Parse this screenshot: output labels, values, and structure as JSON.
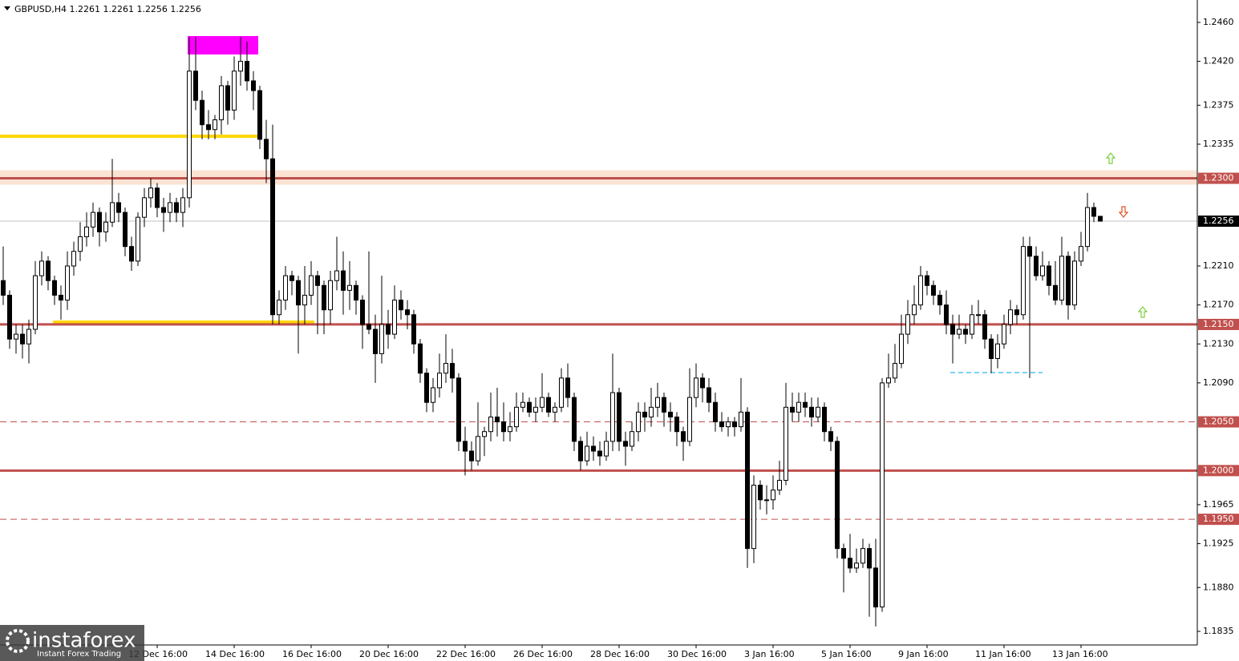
{
  "chart_data": {
    "type": "candlestick",
    "title": "GBPUSD,H4  1.2261 1.2261 1.2256 1.2256",
    "up_color": "#ffffff",
    "down_color": "#000000",
    "outline": "#000000",
    "ylim": [
      1.1821,
      1.2483
    ],
    "yticks": [
      {
        "value": 1.246,
        "label": "1.2460"
      },
      {
        "value": 1.242,
        "label": "1.2420"
      },
      {
        "value": 1.2375,
        "label": "1.2375"
      },
      {
        "value": 1.2335,
        "label": "1.2335"
      },
      {
        "value": 1.221,
        "label": "1.2210"
      },
      {
        "value": 1.217,
        "label": "1.2170"
      },
      {
        "value": 1.213,
        "label": "1.2130"
      },
      {
        "value": 1.209,
        "label": "1.2090"
      },
      {
        "value": 1.1965,
        "label": "1.1965"
      },
      {
        "value": 1.1925,
        "label": "1.1925"
      },
      {
        "value": 1.188,
        "label": "1.1880"
      },
      {
        "value": 1.1835,
        "label": "1.1835"
      }
    ],
    "levels": [
      {
        "value": 1.23,
        "label": "1.2300",
        "color": "#c0504d",
        "style": "solid"
      },
      {
        "value": 1.215,
        "label": "1.2150",
        "color": "#c0504d",
        "style": "solid"
      },
      {
        "value": 1.205,
        "label": "1.2050",
        "color": "#c0504d",
        "style": "dashed"
      },
      {
        "value": 1.2,
        "label": "1.2000",
        "color": "#c0504d",
        "style": "solid"
      },
      {
        "value": 1.195,
        "label": "1.1950",
        "color": "#c0504d",
        "style": "dashed"
      }
    ],
    "current": {
      "value": 1.2256,
      "label": "1.2256"
    },
    "categories": [
      null,
      null,
      null,
      null,
      null,
      null,
      null,
      null,
      null,
      null,
      null,
      null,
      null,
      null,
      null,
      null,
      null,
      null,
      null,
      null,
      null,
      null,
      null,
      null,
      "12 Dec 16:00",
      null,
      null,
      null,
      null,
      null,
      null,
      null,
      null,
      null,
      null,
      null,
      "14 Dec 16:00",
      null,
      null,
      null,
      null,
      null,
      null,
      null,
      null,
      null,
      null,
      null,
      "16 Dec 16:00",
      null,
      null,
      null,
      null,
      null,
      null,
      null,
      null,
      null,
      null,
      null,
      "20 Dec 16:00",
      null,
      null,
      null,
      null,
      null,
      null,
      null,
      null,
      null,
      null,
      null,
      "22 Dec 16:00",
      null,
      null,
      null,
      null,
      null,
      null,
      null,
      null,
      null,
      null,
      null,
      "26 Dec 16:00",
      null,
      null,
      null,
      null,
      null,
      null,
      null,
      null,
      null,
      null,
      null,
      "28 Dec 16:00",
      null,
      null,
      null,
      null,
      null,
      null,
      null,
      null,
      null,
      null,
      null,
      "30 Dec 16:00",
      null,
      null,
      null,
      null,
      null,
      null,
      null,
      null,
      null,
      null,
      null,
      "3 Jan 16:00",
      null,
      null,
      null,
      null,
      null,
      null,
      null,
      null,
      null,
      null,
      null,
      "5 Jan 16:00",
      null,
      null,
      null,
      null,
      null,
      null,
      null,
      null,
      null,
      null,
      null,
      "9 Jan 16:00",
      null,
      null,
      null,
      null,
      null,
      null,
      null,
      null,
      null,
      null,
      null,
      "11 Jan 16:00",
      null,
      null,
      null,
      null,
      null,
      null,
      null,
      null,
      null,
      null,
      null,
      "13 Jan 16:00",
      null,
      null,
      null
    ],
    "ohlc": [
      [
        1.2195,
        1.223,
        1.217,
        1.218
      ],
      [
        1.218,
        1.2185,
        1.2125,
        1.2135
      ],
      [
        1.2135,
        1.215,
        1.212,
        1.214
      ],
      [
        1.214,
        1.215,
        1.2115,
        1.213
      ],
      [
        1.213,
        1.2155,
        1.211,
        1.2145
      ],
      [
        1.2145,
        1.2215,
        1.214,
        1.22
      ],
      [
        1.22,
        1.2225,
        1.219,
        1.2215
      ],
      [
        1.2215,
        1.222,
        1.2185,
        1.2195
      ],
      [
        1.2195,
        1.22,
        1.217,
        1.218
      ],
      [
        1.218,
        1.219,
        1.2155,
        1.2175
      ],
      [
        1.2175,
        1.2225,
        1.2165,
        1.221
      ],
      [
        1.221,
        1.2235,
        1.22,
        1.2225
      ],
      [
        1.2225,
        1.2255,
        1.2215,
        1.224
      ],
      [
        1.224,
        1.2265,
        1.223,
        1.225
      ],
      [
        1.225,
        1.2275,
        1.224,
        1.2265
      ],
      [
        1.2265,
        1.227,
        1.223,
        1.2245
      ],
      [
        1.2245,
        1.2265,
        1.2235,
        1.2255
      ],
      [
        1.2255,
        1.232,
        1.225,
        1.2275
      ],
      [
        1.2275,
        1.2285,
        1.2255,
        1.2265
      ],
      [
        1.2265,
        1.227,
        1.222,
        1.223
      ],
      [
        1.223,
        1.224,
        1.2205,
        1.2215
      ],
      [
        1.2215,
        1.2265,
        1.221,
        1.226
      ],
      [
        1.226,
        1.229,
        1.225,
        1.228
      ],
      [
        1.228,
        1.23,
        1.227,
        1.229
      ],
      [
        1.229,
        1.2295,
        1.226,
        1.227
      ],
      [
        1.227,
        1.228,
        1.2245,
        1.2265
      ],
      [
        1.2265,
        1.2285,
        1.2255,
        1.2275
      ],
      [
        1.2275,
        1.228,
        1.2255,
        1.2265
      ],
      [
        1.2265,
        1.229,
        1.225,
        1.228
      ],
      [
        1.228,
        1.2445,
        1.227,
        1.241
      ],
      [
        1.241,
        1.2445,
        1.237,
        1.238
      ],
      [
        1.238,
        1.239,
        1.234,
        1.2355
      ],
      [
        1.2355,
        1.237,
        1.234,
        1.235
      ],
      [
        1.235,
        1.2365,
        1.234,
        1.236
      ],
      [
        1.236,
        1.2405,
        1.2345,
        1.2395
      ],
      [
        1.2395,
        1.24,
        1.2355,
        1.237
      ],
      [
        1.237,
        1.2425,
        1.236,
        1.241
      ],
      [
        1.241,
        1.2445,
        1.2395,
        1.242
      ],
      [
        1.242,
        1.244,
        1.239,
        1.24
      ],
      [
        1.24,
        1.241,
        1.237,
        1.239
      ],
      [
        1.239,
        1.2395,
        1.233,
        1.234
      ],
      [
        1.234,
        1.236,
        1.2295,
        1.232
      ],
      [
        1.232,
        1.2355,
        1.215,
        1.216
      ],
      [
        1.216,
        1.2185,
        1.215,
        1.2175
      ],
      [
        1.2175,
        1.221,
        1.2165,
        1.22
      ],
      [
        1.22,
        1.2205,
        1.218,
        1.2195
      ],
      [
        1.2195,
        1.22,
        1.212,
        1.217
      ],
      [
        1.217,
        1.221,
        1.215,
        1.218
      ],
      [
        1.218,
        1.2215,
        1.217,
        1.22
      ],
      [
        1.22,
        1.2205,
        1.214,
        1.219
      ],
      [
        1.219,
        1.2195,
        1.214,
        1.2165
      ],
      [
        1.2165,
        1.2205,
        1.215,
        1.2195
      ],
      [
        1.2195,
        1.224,
        1.2185,
        1.2205
      ],
      [
        1.2205,
        1.2225,
        1.216,
        1.2185
      ],
      [
        1.2185,
        1.2215,
        1.2165,
        1.219
      ],
      [
        1.219,
        1.2195,
        1.216,
        1.2175
      ],
      [
        1.2175,
        1.218,
        1.2125,
        1.215
      ],
      [
        1.215,
        1.2225,
        1.214,
        1.2145
      ],
      [
        1.2145,
        1.216,
        1.209,
        1.212
      ],
      [
        1.212,
        1.22,
        1.211,
        1.215
      ],
      [
        1.215,
        1.2165,
        1.2125,
        1.214
      ],
      [
        1.214,
        1.219,
        1.2135,
        1.2175
      ],
      [
        1.2175,
        1.2185,
        1.2155,
        1.2165
      ],
      [
        1.2165,
        1.2175,
        1.2145,
        1.216
      ],
      [
        1.216,
        1.2165,
        1.212,
        1.213
      ],
      [
        1.213,
        1.2135,
        1.209,
        1.21
      ],
      [
        1.21,
        1.2105,
        1.206,
        1.207
      ],
      [
        1.207,
        1.2095,
        1.206,
        1.2085
      ],
      [
        1.2085,
        1.212,
        1.2075,
        1.21
      ],
      [
        1.21,
        1.214,
        1.209,
        1.211
      ],
      [
        1.211,
        1.2125,
        1.208,
        1.2095
      ],
      [
        1.2095,
        1.21,
        1.202,
        1.203
      ],
      [
        1.203,
        1.2045,
        1.1995,
        1.202
      ],
      [
        1.202,
        1.203,
        1.2,
        1.201
      ],
      [
        1.201,
        1.207,
        1.2005,
        1.2035
      ],
      [
        1.2035,
        1.2045,
        1.2015,
        1.204
      ],
      [
        1.204,
        1.208,
        1.203,
        1.2055
      ],
      [
        1.2055,
        1.2085,
        1.2035,
        1.205
      ],
      [
        1.205,
        1.207,
        1.203,
        1.204
      ],
      [
        1.204,
        1.206,
        1.203,
        1.2045
      ],
      [
        1.2045,
        1.208,
        1.204,
        1.2065
      ],
      [
        1.2065,
        1.208,
        1.206,
        1.207
      ],
      [
        1.207,
        1.2075,
        1.2055,
        1.206
      ],
      [
        1.206,
        1.2075,
        1.205,
        1.2065
      ],
      [
        1.2065,
        1.21,
        1.206,
        1.2075
      ],
      [
        1.2075,
        1.208,
        1.2055,
        1.206
      ],
      [
        1.206,
        1.207,
        1.205,
        1.2065
      ],
      [
        1.2065,
        1.2105,
        1.206,
        1.2095
      ],
      [
        1.2095,
        1.211,
        1.2065,
        1.2075
      ],
      [
        1.2075,
        1.208,
        1.202,
        1.203
      ],
      [
        1.203,
        1.2035,
        1.2,
        1.201
      ],
      [
        1.201,
        1.204,
        1.2005,
        1.2025
      ],
      [
        1.2025,
        1.2035,
        1.201,
        1.202
      ],
      [
        1.202,
        1.203,
        1.2005,
        1.2015
      ],
      [
        1.2015,
        1.204,
        1.201,
        1.203
      ],
      [
        1.203,
        1.212,
        1.202,
        1.208
      ],
      [
        1.208,
        1.2085,
        1.202,
        1.203
      ],
      [
        1.203,
        1.204,
        1.2005,
        1.2025
      ],
      [
        1.2025,
        1.205,
        1.202,
        1.204
      ],
      [
        1.204,
        1.207,
        1.203,
        1.206
      ],
      [
        1.206,
        1.207,
        1.204,
        1.2055
      ],
      [
        1.2055,
        1.2085,
        1.2045,
        1.2065
      ],
      [
        1.2065,
        1.209,
        1.2055,
        1.2075
      ],
      [
        1.2075,
        1.208,
        1.2045,
        1.206
      ],
      [
        1.206,
        1.207,
        1.204,
        1.2055
      ],
      [
        1.2055,
        1.206,
        1.2025,
        1.204
      ],
      [
        1.204,
        1.2045,
        1.201,
        1.203
      ],
      [
        1.203,
        1.2105,
        1.2025,
        1.2075
      ],
      [
        1.2075,
        1.211,
        1.2065,
        1.2095
      ],
      [
        1.2095,
        1.21,
        1.207,
        1.2085
      ],
      [
        1.2085,
        1.2095,
        1.206,
        1.207
      ],
      [
        1.207,
        1.208,
        1.204,
        1.205
      ],
      [
        1.205,
        1.206,
        1.204,
        1.2045
      ],
      [
        1.2045,
        1.2055,
        1.2035,
        1.205
      ],
      [
        1.205,
        1.2055,
        1.2035,
        1.2045
      ],
      [
        1.2045,
        1.2095,
        1.204,
        1.206
      ],
      [
        1.206,
        1.2065,
        1.19,
        1.192
      ],
      [
        1.192,
        1.1995,
        1.1905,
        1.1985
      ],
      [
        1.1985,
        1.199,
        1.196,
        1.197
      ],
      [
        1.197,
        1.1985,
        1.1955,
        1.197
      ],
      [
        1.197,
        1.1995,
        1.196,
        1.198
      ],
      [
        1.198,
        1.201,
        1.1975,
        1.199
      ],
      [
        1.199,
        1.209,
        1.1985,
        1.2065
      ],
      [
        1.2065,
        1.208,
        1.205,
        1.206
      ],
      [
        1.206,
        1.208,
        1.205,
        1.207
      ],
      [
        1.207,
        1.208,
        1.2055,
        1.2065
      ],
      [
        1.2065,
        1.2075,
        1.2045,
        1.2055
      ],
      [
        1.2055,
        1.2075,
        1.205,
        1.2065
      ],
      [
        1.2065,
        1.207,
        1.203,
        1.204
      ],
      [
        1.204,
        1.2045,
        1.202,
        1.203
      ],
      [
        1.203,
        1.2035,
        1.191,
        1.192
      ],
      [
        1.192,
        1.1925,
        1.1875,
        1.191
      ],
      [
        1.191,
        1.1935,
        1.1895,
        1.19
      ],
      [
        1.19,
        1.192,
        1.1895,
        1.1905
      ],
      [
        1.1905,
        1.193,
        1.19,
        1.192
      ],
      [
        1.192,
        1.1925,
        1.185,
        1.19
      ],
      [
        1.19,
        1.193,
        1.184,
        1.186
      ],
      [
        1.186,
        1.2095,
        1.1855,
        1.209
      ],
      [
        1.209,
        1.212,
        1.2085,
        1.2095
      ],
      [
        1.2095,
        1.213,
        1.209,
        1.211
      ],
      [
        1.211,
        1.216,
        1.2105,
        1.214
      ],
      [
        1.214,
        1.2175,
        1.213,
        1.216
      ],
      [
        1.216,
        1.219,
        1.215,
        1.217
      ],
      [
        1.217,
        1.221,
        1.2165,
        1.22
      ],
      [
        1.22,
        1.2205,
        1.218,
        1.219
      ],
      [
        1.219,
        1.2195,
        1.217,
        1.218
      ],
      [
        1.218,
        1.2185,
        1.216,
        1.217
      ],
      [
        1.217,
        1.2185,
        1.214,
        1.215
      ],
      [
        1.215,
        1.216,
        1.211,
        1.214
      ],
      [
        1.214,
        1.216,
        1.2135,
        1.2145
      ],
      [
        1.2145,
        1.215,
        1.213,
        1.214
      ],
      [
        1.214,
        1.217,
        1.2135,
        1.216
      ],
      [
        1.216,
        1.2175,
        1.215,
        1.216
      ],
      [
        1.216,
        1.2165,
        1.2125,
        1.2135
      ],
      [
        1.2135,
        1.214,
        1.21,
        1.2115
      ],
      [
        1.2115,
        1.214,
        1.2105,
        1.213
      ],
      [
        1.213,
        1.216,
        1.2125,
        1.215
      ],
      [
        1.215,
        1.2175,
        1.214,
        1.2165
      ],
      [
        1.2165,
        1.217,
        1.215,
        1.216
      ],
      [
        1.216,
        1.224,
        1.2155,
        1.223
      ],
      [
        1.223,
        1.224,
        1.2095,
        1.222
      ],
      [
        1.222,
        1.223,
        1.2195,
        1.22
      ],
      [
        1.22,
        1.2225,
        1.2195,
        1.221
      ],
      [
        1.221,
        1.2215,
        1.218,
        1.219
      ],
      [
        1.219,
        1.2215,
        1.217,
        1.2175
      ],
      [
        1.2175,
        1.224,
        1.217,
        1.222
      ],
      [
        1.222,
        1.2225,
        1.2155,
        1.217
      ],
      [
        1.217,
        1.2225,
        1.2165,
        1.2215
      ],
      [
        1.2215,
        1.2245,
        1.221,
        1.223
      ],
      [
        1.223,
        1.2285,
        1.2225,
        1.227
      ],
      [
        1.227,
        1.2275,
        1.2255,
        1.2261
      ],
      [
        1.2261,
        1.2261,
        1.2256,
        1.2256
      ]
    ]
  },
  "logo": {
    "name": "instaforex",
    "tagline": "Instant Forex Trading"
  }
}
